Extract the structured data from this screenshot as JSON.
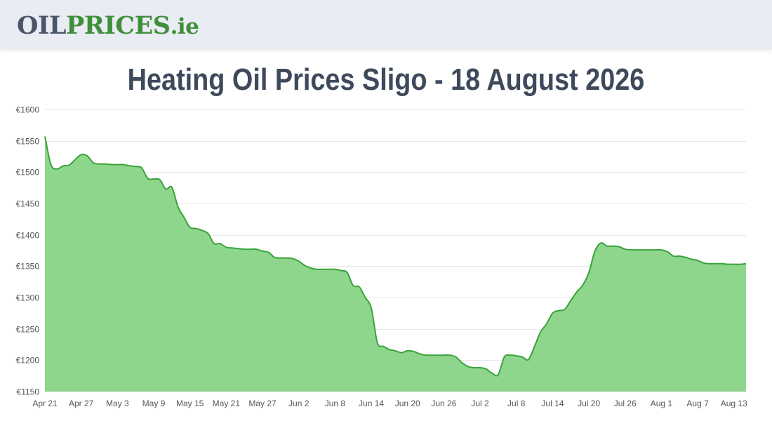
{
  "header": {
    "logo_part1": "OIL",
    "logo_part2": "PRICES",
    "logo_part3": ".ie"
  },
  "page_title": "Heating Oil Prices Sligo - 18 August 2026",
  "colors": {
    "header_bg": "#eaecf3",
    "logo_gray": "#4a5668",
    "logo_green": "#3f8f3a",
    "line": "#3aa33a",
    "area_fill": "#8fd68d",
    "title": "#3e4a5c"
  },
  "chart_data": {
    "type": "area",
    "title": "",
    "xlabel": "",
    "ylabel": "",
    "ylim": [
      1150,
      1600
    ],
    "y_ticks": [
      1150,
      1200,
      1250,
      1300,
      1350,
      1400,
      1450,
      1500,
      1550,
      1600
    ],
    "y_tick_labels": [
      "€1150",
      "€1200",
      "€1250",
      "€1300",
      "€1350",
      "€1400",
      "€1450",
      "€1500",
      "€1550",
      "€1600"
    ],
    "x_ticks": [
      "Apr 21",
      "Apr 27",
      "May 3",
      "May 9",
      "May 15",
      "May 21",
      "May 27",
      "Jun 2",
      "Jun 8",
      "Jun 14",
      "Jun 20",
      "Jun 26",
      "Jul 2",
      "Jul 8",
      "Jul 14",
      "Jul 20",
      "Jul 26",
      "Aug 1",
      "Aug 7",
      "Aug 13"
    ],
    "grid": true,
    "legend": "none",
    "series": [
      {
        "points": [
          [
            "Apr 21",
            1557
          ],
          [
            "Apr 22",
            1512
          ],
          [
            "Apr 23",
            1505
          ],
          [
            "Apr 24",
            1510
          ],
          [
            "Apr 25",
            1511
          ],
          [
            "Apr 26",
            1520
          ],
          [
            "Apr 27",
            1528
          ],
          [
            "Apr 28",
            1526
          ],
          [
            "Apr 29",
            1515
          ],
          [
            "Apr 30",
            1513
          ],
          [
            "May 1",
            1513
          ],
          [
            "May 2",
            1512
          ],
          [
            "May 3",
            1512
          ],
          [
            "May 4",
            1512
          ],
          [
            "May 5",
            1510
          ],
          [
            "May 6",
            1509
          ],
          [
            "May 7",
            1507
          ],
          [
            "May 8",
            1490
          ],
          [
            "May 9",
            1489
          ],
          [
            "May 10",
            1488
          ],
          [
            "May 11",
            1473
          ],
          [
            "May 12",
            1476
          ],
          [
            "May 13",
            1445
          ],
          [
            "May 14",
            1428
          ],
          [
            "May 15",
            1412
          ],
          [
            "May 16",
            1410
          ],
          [
            "May 17",
            1407
          ],
          [
            "May 18",
            1402
          ],
          [
            "May 19",
            1386
          ],
          [
            "May 20",
            1386
          ],
          [
            "May 21",
            1380
          ],
          [
            "May 22",
            1379
          ],
          [
            "May 23",
            1378
          ],
          [
            "May 24",
            1377
          ],
          [
            "May 25",
            1377
          ],
          [
            "May 26",
            1377
          ],
          [
            "May 27",
            1374
          ],
          [
            "May 28",
            1372
          ],
          [
            "May 29",
            1364
          ],
          [
            "May 30",
            1363
          ],
          [
            "May 31",
            1363
          ],
          [
            "Jun 1",
            1362
          ],
          [
            "Jun 2",
            1358
          ],
          [
            "Jun 3",
            1351
          ],
          [
            "Jun 4",
            1347
          ],
          [
            "Jun 5",
            1345
          ],
          [
            "Jun 6",
            1345
          ],
          [
            "Jun 7",
            1345
          ],
          [
            "Jun 8",
            1345
          ],
          [
            "Jun 9",
            1343
          ],
          [
            "Jun 10",
            1340
          ],
          [
            "Jun 11",
            1319
          ],
          [
            "Jun 12",
            1317
          ],
          [
            "Jun 13",
            1300
          ],
          [
            "Jun 14",
            1283
          ],
          [
            "Jun 15",
            1228
          ],
          [
            "Jun 16",
            1222
          ],
          [
            "Jun 17",
            1217
          ],
          [
            "Jun 18",
            1215
          ],
          [
            "Jun 19",
            1212
          ],
          [
            "Jun 20",
            1215
          ],
          [
            "Jun 21",
            1214
          ],
          [
            "Jun 22",
            1210
          ],
          [
            "Jun 23",
            1208
          ],
          [
            "Jun 24",
            1208
          ],
          [
            "Jun 25",
            1208
          ],
          [
            "Jun 26",
            1208
          ],
          [
            "Jun 27",
            1208
          ],
          [
            "Jun 28",
            1205
          ],
          [
            "Jun 29",
            1196
          ],
          [
            "Jun 30",
            1190
          ],
          [
            "Jul 1",
            1188
          ],
          [
            "Jul 2",
            1188
          ],
          [
            "Jul 3",
            1186
          ],
          [
            "Jul 4",
            1179
          ],
          [
            "Jul 5",
            1177
          ],
          [
            "Jul 6",
            1205
          ],
          [
            "Jul 7",
            1208
          ],
          [
            "Jul 8",
            1207
          ],
          [
            "Jul 9",
            1205
          ],
          [
            "Jul 10",
            1201
          ],
          [
            "Jul 11",
            1222
          ],
          [
            "Jul 12",
            1245
          ],
          [
            "Jul 13",
            1258
          ],
          [
            "Jul 14",
            1275
          ],
          [
            "Jul 15",
            1279
          ],
          [
            "Jul 16",
            1281
          ],
          [
            "Jul 17",
            1295
          ],
          [
            "Jul 18",
            1309
          ],
          [
            "Jul 19",
            1320
          ],
          [
            "Jul 20",
            1340
          ],
          [
            "Jul 21",
            1374
          ],
          [
            "Jul 22",
            1387
          ],
          [
            "Jul 23",
            1382
          ],
          [
            "Jul 24",
            1382
          ],
          [
            "Jul 25",
            1381
          ],
          [
            "Jul 26",
            1377
          ],
          [
            "Jul 27",
            1376
          ],
          [
            "Jul 28",
            1376
          ],
          [
            "Jul 29",
            1376
          ],
          [
            "Jul 30",
            1376
          ],
          [
            "Jul 31",
            1376
          ],
          [
            "Aug 1",
            1376
          ],
          [
            "Aug 2",
            1373
          ],
          [
            "Aug 3",
            1366
          ],
          [
            "Aug 4",
            1366
          ],
          [
            "Aug 5",
            1364
          ],
          [
            "Aug 6",
            1361
          ],
          [
            "Aug 7",
            1359
          ],
          [
            "Aug 8",
            1355
          ],
          [
            "Aug 9",
            1354
          ],
          [
            "Aug 10",
            1354
          ],
          [
            "Aug 11",
            1354
          ],
          [
            "Aug 12",
            1353
          ],
          [
            "Aug 13",
            1353
          ],
          [
            "Aug 14",
            1353
          ],
          [
            "Aug 15",
            1354
          ]
        ]
      }
    ]
  }
}
